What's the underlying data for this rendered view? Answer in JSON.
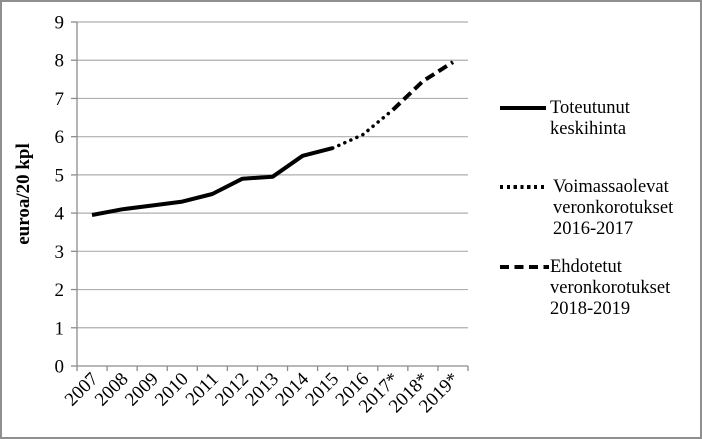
{
  "figure": {
    "background": "#ffffff",
    "border_color": "#8f8f8f",
    "colors": {
      "series_line": "#000000",
      "gridline": "#aeaeae",
      "axis": "#8c8c8c",
      "text": "#000000"
    }
  },
  "chart_data": {
    "type": "line",
    "title": "",
    "xlabel": "",
    "ylabel": "euroa/20 kpl",
    "ylim": [
      0,
      9
    ],
    "ytick_step": 1,
    "grid": true,
    "legend_position": "right",
    "categories": [
      "2007",
      "2008",
      "2009",
      "2010",
      "2011",
      "2012",
      "2013",
      "2014",
      "2015",
      "2016",
      "2017*",
      "2018*",
      "2019*"
    ],
    "series": [
      {
        "name": "Toteutunut keskihinta",
        "style": "solid",
        "start_index": 0,
        "values": [
          3.95,
          4.1,
          4.2,
          4.3,
          4.5,
          4.9,
          4.95,
          5.5,
          5.7
        ]
      },
      {
        "name": "Voimassaolevat veronkorotukset 2016-2017",
        "style": "dotted",
        "start_index": 8,
        "values": [
          5.7,
          6.05,
          6.7
        ]
      },
      {
        "name": "Ehdotetut veronkorotukset 2018-2019",
        "style": "dashed",
        "start_index": 10,
        "values": [
          6.7,
          7.45,
          7.95
        ]
      }
    ]
  },
  "legend": {
    "items": [
      {
        "label": "Toteutunut keskihinta",
        "style": "solid"
      },
      {
        "label": "Voimassaolevat veronkorotukset 2016-2017",
        "style": "dotted"
      },
      {
        "label": "Ehdotetut veronkorotukset 2018-2019",
        "style": "dashed"
      }
    ]
  }
}
